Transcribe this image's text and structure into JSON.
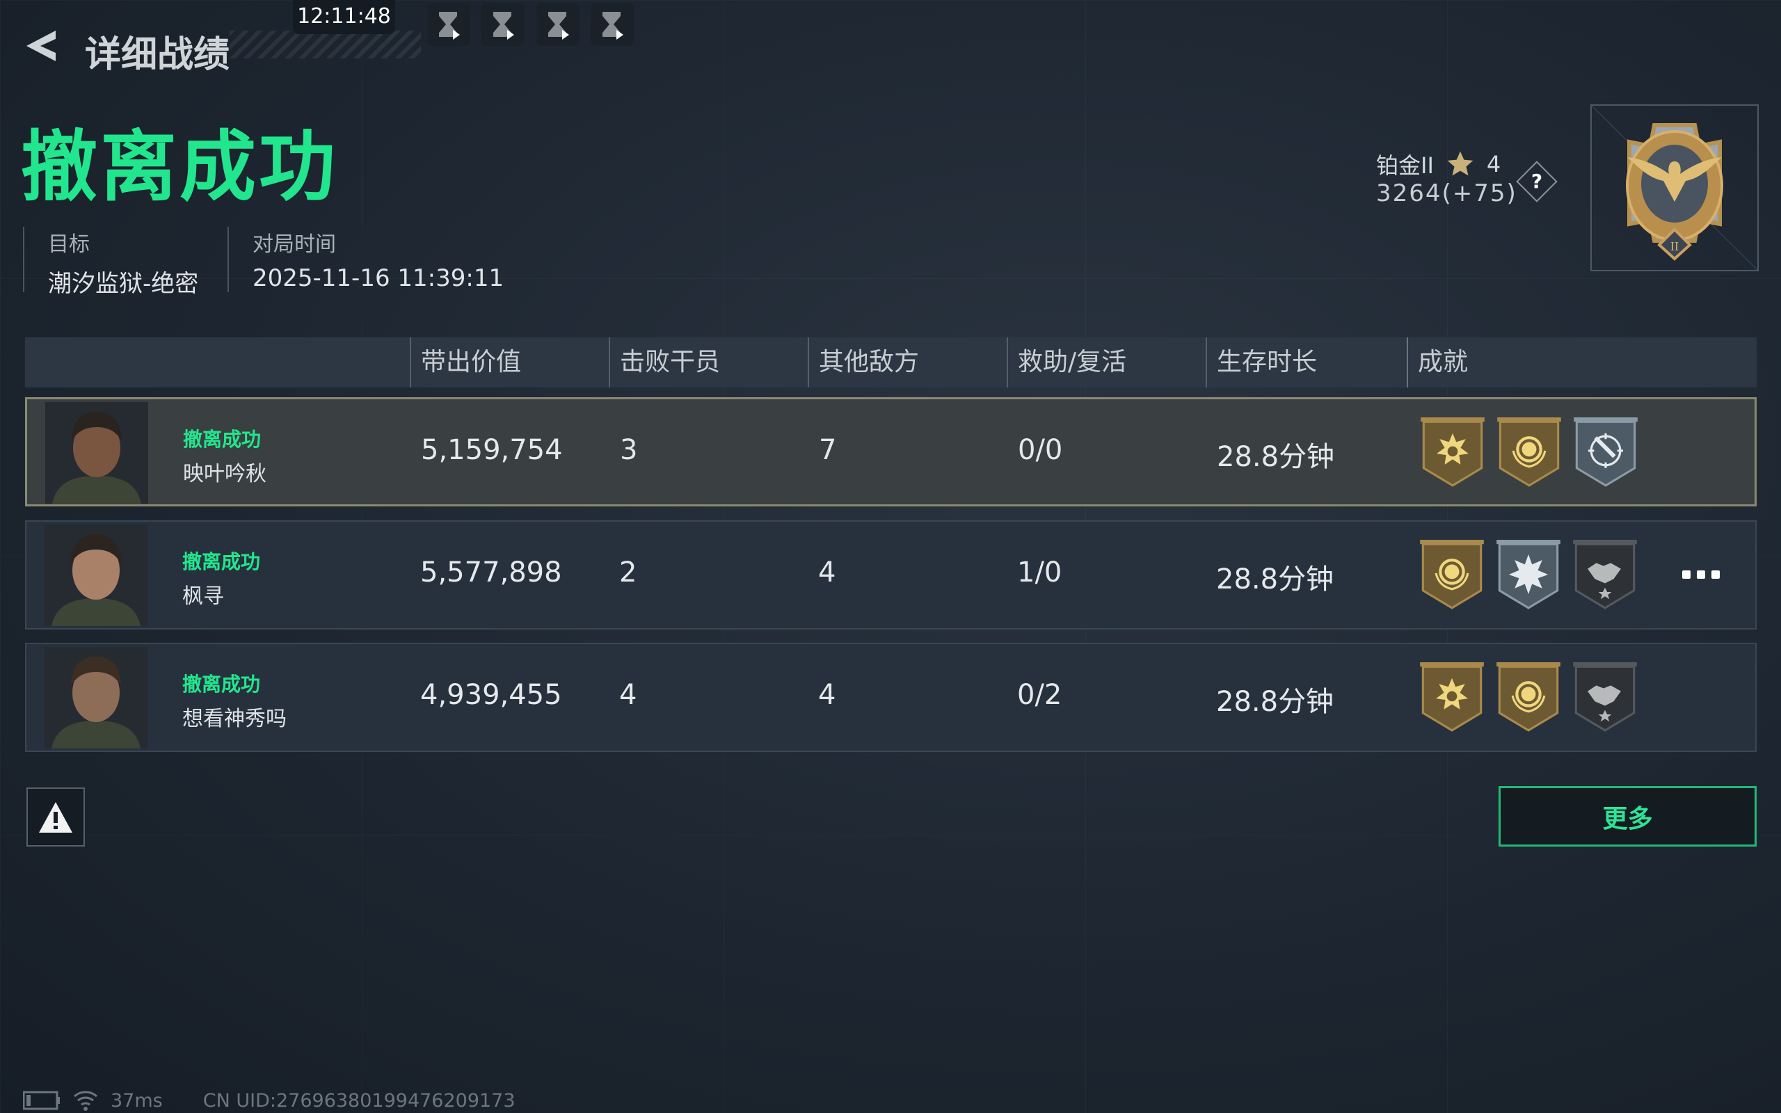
{
  "header": {
    "title": "详细战绩",
    "clock": "12:11:48",
    "replay_buttons": [
      "hourglass-icon",
      "hourglass-icon",
      "hourglass-icon",
      "hourglass-icon"
    ]
  },
  "result": {
    "title": "撤离成功",
    "color": "#22e68e"
  },
  "info": {
    "target_label": "目标",
    "target_value": "潮汐监狱-绝密",
    "time_label": "对局时间",
    "time_value": "2025-11-16 11:39:11"
  },
  "rank": {
    "tier": "铂金II",
    "stars": "4",
    "score": "3264(+75)",
    "help": "?",
    "medal_numeral": "II"
  },
  "table": {
    "columns": [
      "带出价值",
      "击败干员",
      "其他敌方",
      "救助/复活",
      "生存时长",
      "成就"
    ],
    "rows": [
      {
        "status": "撤离成功",
        "name": "映叶吟秋",
        "value": "5,159,754",
        "kills": "3",
        "other": "7",
        "assist": "0/0",
        "survival": "28.8分钟",
        "badges": [
          "gold-star-badge",
          "gold-laurel-badge",
          "silver-knife-target-badge"
        ],
        "highlight": true,
        "more": false
      },
      {
        "status": "撤离成功",
        "name": "枫寻",
        "value": "5,577,898",
        "kills": "2",
        "other": "4",
        "assist": "1/0",
        "survival": "28.8分钟",
        "badges": [
          "gold-laurel-badge",
          "silver-explosion-badge",
          "dark-handshake-badge"
        ],
        "highlight": false,
        "more": true
      },
      {
        "status": "撤离成功",
        "name": "想看神秀吗",
        "value": "4,939,455",
        "kills": "4",
        "other": "4",
        "assist": "0/2",
        "survival": "28.8分钟",
        "badges": [
          "gold-star-badge",
          "gold-laurel-badge",
          "dark-handshake-badge"
        ],
        "highlight": false,
        "more": false
      }
    ]
  },
  "actions": {
    "more": "更多",
    "report": "warning-icon"
  },
  "status_bar": {
    "ping": "37ms",
    "uid": "CN UID:27696380199476209173"
  }
}
